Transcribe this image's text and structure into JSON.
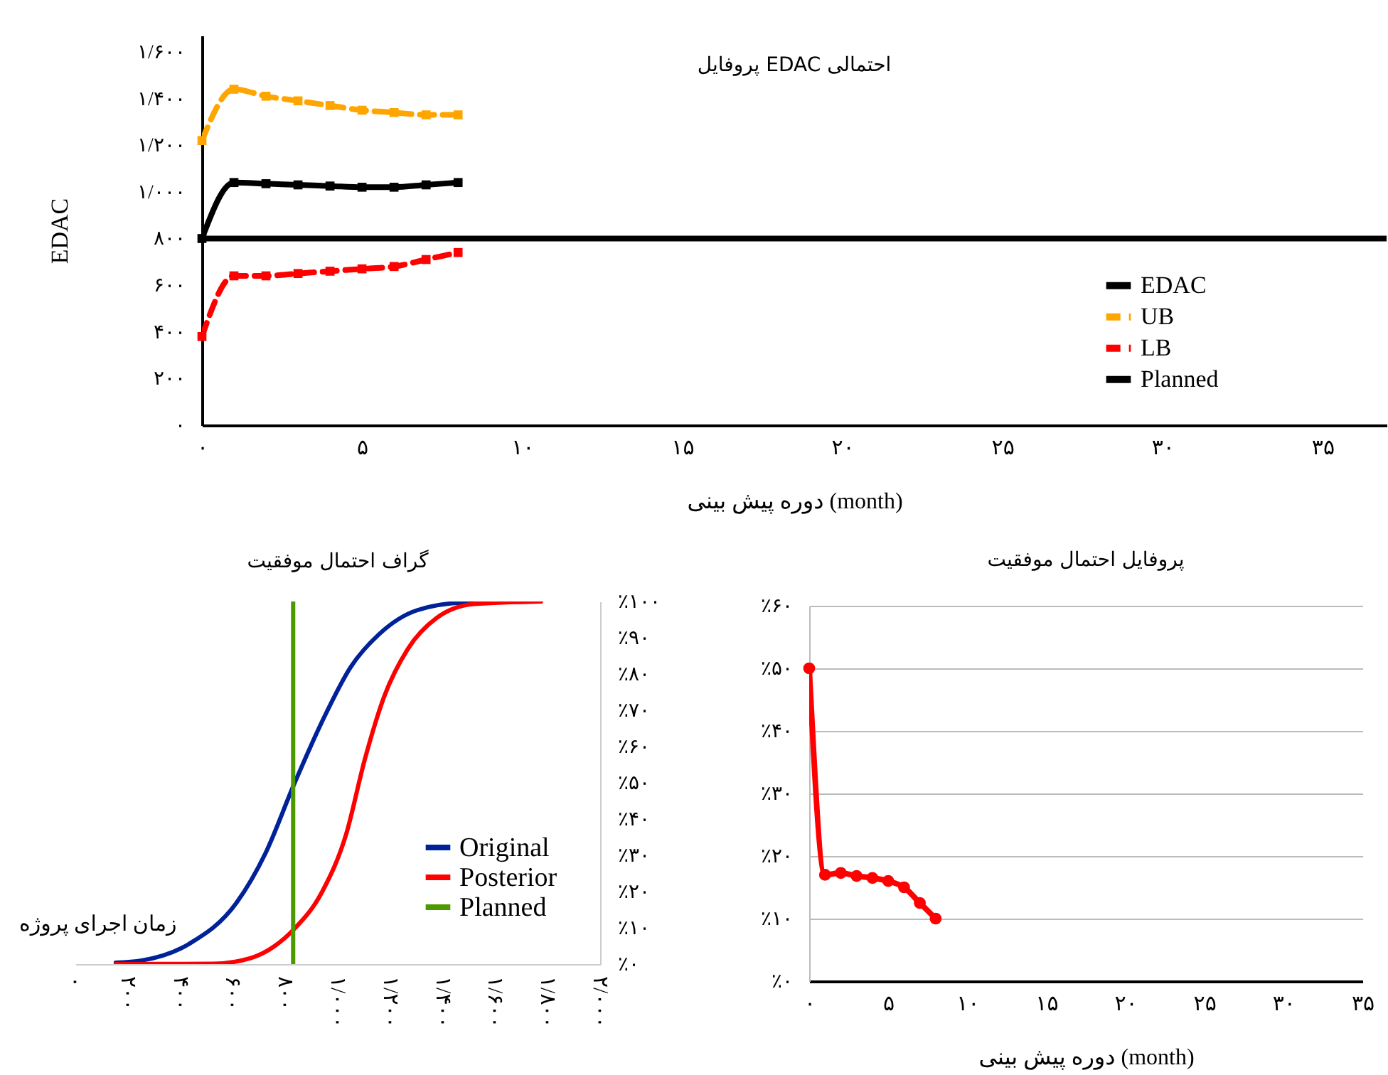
{
  "chart_data": [
    {
      "type": "line",
      "title": "پروفایل EDAC احتمالی",
      "xlabel": "دوره پیش بینی (month)",
      "ylabel": "EDAC",
      "x": [
        0,
        1,
        2,
        3,
        4,
        5,
        6,
        7,
        8
      ],
      "xlim": [
        0,
        37
      ],
      "xticks": [
        {
          "value": 0,
          "label": "۰"
        },
        {
          "value": 5,
          "label": "۵"
        },
        {
          "value": 10,
          "label": "۱۰"
        },
        {
          "value": 15,
          "label": "۱۵"
        },
        {
          "value": 20,
          "label": "۲۰"
        },
        {
          "value": 25,
          "label": "۲۵"
        },
        {
          "value": 30,
          "label": "۳۰"
        },
        {
          "value": 35,
          "label": "۳۵"
        }
      ],
      "ylim": [
        0,
        1670
      ],
      "yticks": [
        {
          "value": 0,
          "label": "۰"
        },
        {
          "value": 200,
          "label": "۲۰۰"
        },
        {
          "value": 400,
          "label": "۴۰۰"
        },
        {
          "value": 600,
          "label": "۶۰۰"
        },
        {
          "value": 800,
          "label": "۸۰۰"
        },
        {
          "value": 1000,
          "label": "۱/۰۰۰"
        },
        {
          "value": 1200,
          "label": "۱/۲۰۰"
        },
        {
          "value": 1400,
          "label": "۱/۴۰۰"
        },
        {
          "value": 1600,
          "label": "۱/۶۰۰"
        }
      ],
      "marker": "square",
      "legend": "right",
      "grid": false,
      "series": [
        {
          "name": "EDAC",
          "color": "#000000",
          "values": [
            800,
            1040,
            1035,
            1030,
            1025,
            1020,
            1020,
            1030,
            1040
          ]
        },
        {
          "name": "UB",
          "color": "#ffa500",
          "line_style": "dashed",
          "values": [
            1220,
            1440,
            1410,
            1390,
            1370,
            1350,
            1340,
            1330,
            1330
          ]
        },
        {
          "name": "LB",
          "color": "#ff0000",
          "line_style": "dashed",
          "values": [
            380,
            640,
            640,
            650,
            660,
            670,
            680,
            710,
            740
          ]
        },
        {
          "name": "Planned",
          "color": "#000000",
          "marker": "none",
          "x": [
            0,
            37
          ],
          "values": [
            800,
            800
          ]
        }
      ]
    },
    {
      "type": "line",
      "title": "گراف احتمال موفقیت",
      "xlabel": "زمان اجرای پروژه",
      "xlim": [
        0,
        2000
      ],
      "xticks": [
        {
          "value": 0,
          "label": "۰"
        },
        {
          "value": 200,
          "label": "۲۰۰"
        },
        {
          "value": 400,
          "label": "۴۰۰"
        },
        {
          "value": 600,
          "label": "۶۰۰"
        },
        {
          "value": 800,
          "label": "۸۰۰"
        },
        {
          "value": 1000,
          "label": "۱/۰۰۰"
        },
        {
          "value": 1200,
          "label": "۱/۲۰۰"
        },
        {
          "value": 1400,
          "label": "۱/۴۰۰"
        },
        {
          "value": 1600,
          "label": "۱/۶۰۰"
        },
        {
          "value": 1800,
          "label": "۱/۸۰۰"
        },
        {
          "value": 2000,
          "label": "۲/۰۰۰"
        }
      ],
      "y2lim": [
        0,
        100
      ],
      "y2ticks": [
        {
          "value": 0,
          "label": "٪۰"
        },
        {
          "value": 10,
          "label": "٪۱۰"
        },
        {
          "value": 20,
          "label": "٪۲۰"
        },
        {
          "value": 30,
          "label": "٪۳۰"
        },
        {
          "value": 40,
          "label": "٪۴۰"
        },
        {
          "value": 50,
          "label": "٪۵۰"
        },
        {
          "value": 60,
          "label": "٪۶۰"
        },
        {
          "value": 70,
          "label": "٪۷۰"
        },
        {
          "value": 80,
          "label": "٪۸۰"
        },
        {
          "value": 90,
          "label": "٪۹۰"
        },
        {
          "value": 100,
          "label": "٪۱۰۰"
        }
      ],
      "legend": "bottom right",
      "grid": false,
      "series": [
        {
          "name": "Original",
          "color": "#002299",
          "axis": "y2",
          "x": [
            154,
            253,
            434,
            615,
            724,
            833,
            941,
            1050,
            1158,
            1303,
            1484,
            1774
          ],
          "values": [
            0.4,
            1,
            5.6,
            17,
            30.5,
            49.5,
            67,
            82,
            91,
            97.6,
            99.7,
            100
          ]
        },
        {
          "name": "Posterior",
          "color": "#ff0000",
          "axis": "y2",
          "x": [
            154,
            525,
            670,
            760,
            833,
            941,
            1032,
            1104,
            1177,
            1267,
            1376,
            1520,
            1774
          ],
          "values": [
            0,
            0.1,
            1.7,
            5,
            9.6,
            20,
            35.8,
            56.7,
            73.8,
            86.9,
            95.4,
            99.3,
            100
          ]
        },
        {
          "name": "Planned",
          "color": "#4d9900",
          "axis": "y2",
          "x": [
            830,
            830
          ],
          "values": [
            0,
            100
          ]
        }
      ]
    },
    {
      "type": "line",
      "title": "پروفایل احتمال موفقیت",
      "xlabel": "دوره پیش بینی (month)",
      "x": [
        0,
        1,
        2,
        3,
        4,
        5,
        6,
        7,
        8
      ],
      "xlim": [
        0,
        35
      ],
      "xticks": [
        {
          "value": 0,
          "label": "۰"
        },
        {
          "value": 5,
          "label": "۵"
        },
        {
          "value": 10,
          "label": "۱۰"
        },
        {
          "value": 15,
          "label": "۱۵"
        },
        {
          "value": 20,
          "label": "۲۰"
        },
        {
          "value": 25,
          "label": "۲۵"
        },
        {
          "value": 30,
          "label": "۳۰"
        },
        {
          "value": 35,
          "label": "۳۵"
        }
      ],
      "ylim": [
        0,
        60
      ],
      "yticks": [
        {
          "value": 0,
          "label": "٪۰"
        },
        {
          "value": 10,
          "label": "٪۱۰"
        },
        {
          "value": 20,
          "label": "٪۲۰"
        },
        {
          "value": 30,
          "label": "٪۳۰"
        },
        {
          "value": 40,
          "label": "٪۴۰"
        },
        {
          "value": 50,
          "label": "٪۵۰"
        },
        {
          "value": 60,
          "label": "٪۶۰"
        }
      ],
      "marker": "circle",
      "grid": "y",
      "legend": false,
      "series": [
        {
          "color": "#ff0000",
          "values": [
            50,
            17,
            17.3,
            16.8,
            16.5,
            16,
            15,
            12.5,
            10
          ]
        }
      ]
    }
  ]
}
